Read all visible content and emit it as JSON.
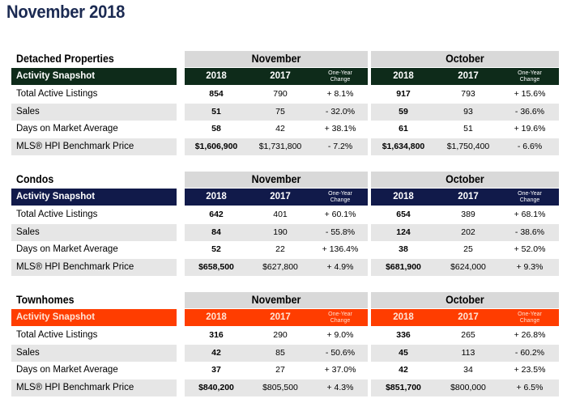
{
  "title": "November 2018",
  "labels": {
    "snapshot": "Activity Snapshot",
    "year_current": "2018",
    "year_previous": "2017",
    "change_line1": "One-Year",
    "change_line2": "Change",
    "november": "November",
    "october": "October"
  },
  "row_labels": [
    "Total Active Listings",
    "Sales",
    "Days on Market Average",
    "MLS® HPI Benchmark Price"
  ],
  "colors": {
    "title": "#1b2a52",
    "detached_header": "#0e2b1a",
    "condos_header": "#111a4a",
    "townhomes_header": "#ff3d00",
    "month_bg": "#d9d9d9",
    "row_shade": "#e6e6e6"
  },
  "sections": [
    {
      "name": "Detached Properties",
      "header_color": "#0e2b1a",
      "change_color": "#ffffff",
      "rows": [
        {
          "nov": [
            "854",
            "790",
            "+ 8.1%"
          ],
          "oct": [
            "917",
            "793",
            "+ 15.6%"
          ]
        },
        {
          "nov": [
            "51",
            "75",
            "- 32.0%"
          ],
          "oct": [
            "59",
            "93",
            "- 36.6%"
          ]
        },
        {
          "nov": [
            "58",
            "42",
            "+ 38.1%"
          ],
          "oct": [
            "61",
            "51",
            "+ 19.6%"
          ]
        },
        {
          "nov": [
            "$1,606,900",
            "$1,731,800",
            "- 7.2%"
          ],
          "oct": [
            "$1,634,800",
            "$1,750,400",
            "- 6.6%"
          ]
        }
      ]
    },
    {
      "name": "Condos",
      "header_color": "#111a4a",
      "change_color": "#ffffff",
      "rows": [
        {
          "nov": [
            "642",
            "401",
            "+ 60.1%"
          ],
          "oct": [
            "654",
            "389",
            "+ 68.1%"
          ]
        },
        {
          "nov": [
            "84",
            "190",
            "- 55.8%"
          ],
          "oct": [
            "124",
            "202",
            "- 38.6%"
          ]
        },
        {
          "nov": [
            "52",
            "22",
            "+ 136.4%"
          ],
          "oct": [
            "38",
            "25",
            "+ 52.0%"
          ]
        },
        {
          "nov": [
            "$658,500",
            "$627,800",
            "+ 4.9%"
          ],
          "oct": [
            "$681,900",
            "$624,000",
            "+ 9.3%"
          ]
        }
      ]
    },
    {
      "name": "Townhomes",
      "header_color": "#ff3d00",
      "change_color": "#ffe0d0",
      "rows": [
        {
          "nov": [
            "316",
            "290",
            "+ 9.0%"
          ],
          "oct": [
            "336",
            "265",
            "+ 26.8%"
          ]
        },
        {
          "nov": [
            "42",
            "85",
            "- 50.6%"
          ],
          "oct": [
            "45",
            "113",
            "- 60.2%"
          ]
        },
        {
          "nov": [
            "37",
            "27",
            "+ 37.0%"
          ],
          "oct": [
            "42",
            "34",
            "+ 23.5%"
          ]
        },
        {
          "nov": [
            "$840,200",
            "$805,500",
            "+ 4.3%"
          ],
          "oct": [
            "$851,700",
            "$800,000",
            "+ 6.5%"
          ]
        }
      ]
    }
  ]
}
